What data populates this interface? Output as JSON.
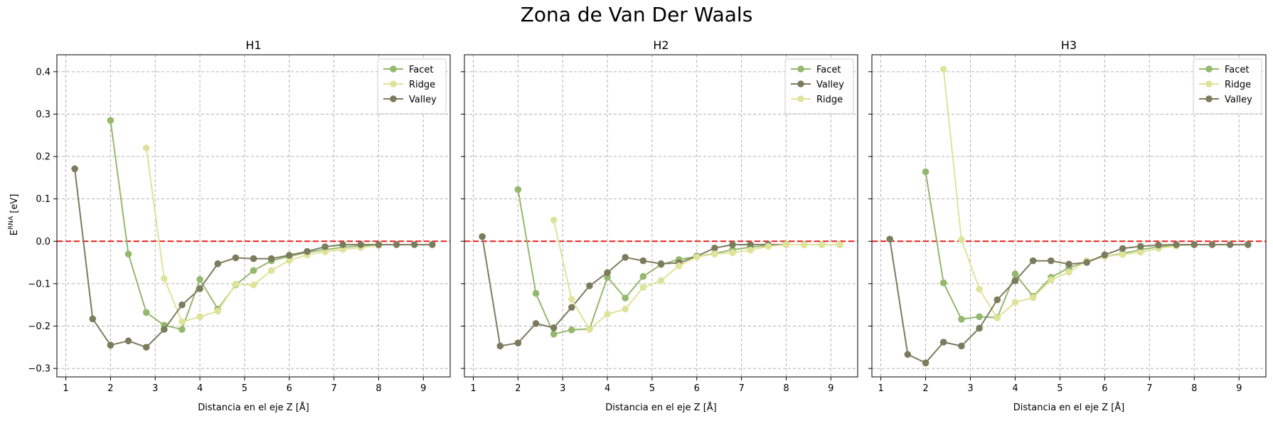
{
  "suptitle": "Zona de Van Der Waals",
  "ylabel": "E^{RNA} [eV]",
  "ylabel_base": "E",
  "ylabel_sup": "RNA",
  "ylabel_unit": " [eV]",
  "colors": {
    "facet": "#94b86d",
    "ridge": "#dfe39a",
    "valley": "#7b7c5e",
    "zero_line": "#e8201a",
    "grid": "#b0b0b0"
  },
  "chart_data": [
    {
      "type": "line",
      "title": "H1",
      "xlabel": "Distancia en el eje Z [Å]",
      "xlim": [
        0.8,
        9.6
      ],
      "ylim": [
        -0.32,
        0.44
      ],
      "xticks": [
        1,
        2,
        3,
        4,
        5,
        6,
        7,
        8,
        9
      ],
      "yticks": [
        -0.3,
        -0.2,
        -0.1,
        0.0,
        0.1,
        0.2,
        0.3,
        0.4
      ],
      "grid": true,
      "legend_position": "top-right",
      "reference_line": 0,
      "series": [
        {
          "name": "Facet",
          "color": "#94b86d",
          "x": [
            2.0,
            2.4,
            2.8,
            3.2,
            3.6,
            4.0,
            4.4,
            4.8,
            5.2,
            5.6,
            6.0,
            6.4,
            6.8,
            7.2,
            7.6,
            8.0
          ],
          "y": [
            0.285,
            -0.03,
            -0.168,
            -0.198,
            -0.208,
            -0.09,
            -0.16,
            -0.103,
            -0.069,
            -0.046,
            -0.036,
            -0.026,
            -0.02,
            -0.014,
            -0.011,
            -0.009
          ]
        },
        {
          "name": "Ridge",
          "color": "#dfe39a",
          "x": [
            2.8,
            3.2,
            3.6,
            4.0,
            4.4,
            4.8,
            5.2,
            5.6,
            6.0,
            6.4,
            6.8,
            7.2,
            7.6,
            8.0
          ],
          "y": [
            0.22,
            -0.088,
            -0.19,
            -0.178,
            -0.165,
            -0.101,
            -0.103,
            -0.069,
            -0.045,
            -0.032,
            -0.025,
            -0.019,
            -0.015,
            -0.01
          ]
        },
        {
          "name": "Valley",
          "color": "#7b7c5e",
          "x": [
            1.2,
            1.6,
            2.0,
            2.4,
            2.8,
            3.2,
            3.6,
            4.0,
            4.4,
            4.8,
            5.2,
            5.6,
            6.0,
            6.4,
            6.8,
            7.2,
            7.6,
            8.0,
            8.4,
            8.8,
            9.2
          ],
          "y": [
            0.171,
            -0.183,
            -0.245,
            -0.235,
            -0.25,
            -0.208,
            -0.15,
            -0.112,
            -0.053,
            -0.039,
            -0.041,
            -0.041,
            -0.033,
            -0.024,
            -0.013,
            -0.008,
            -0.008,
            -0.008,
            -0.008,
            -0.008,
            -0.008
          ]
        }
      ]
    },
    {
      "type": "line",
      "title": "H2",
      "xlabel": "Distancia en el eje Z [Å]",
      "xlim": [
        0.8,
        9.6
      ],
      "ylim": [
        -0.32,
        0.44
      ],
      "xticks": [
        1,
        2,
        3,
        4,
        5,
        6,
        7,
        8,
        9
      ],
      "yticks": [
        -0.3,
        -0.2,
        -0.1,
        0.0,
        0.1,
        0.2,
        0.3,
        0.4
      ],
      "grid": true,
      "legend_position": "top-right",
      "reference_line": 0,
      "series": [
        {
          "name": "Facet",
          "color": "#94b86d",
          "x": [
            2.0,
            2.4,
            2.8,
            3.2,
            3.6,
            4.0,
            4.4,
            4.8,
            5.2,
            5.6,
            6.0,
            6.4,
            6.8,
            7.2,
            7.6,
            8.0
          ],
          "y": [
            0.122,
            -0.123,
            -0.219,
            -0.209,
            -0.207,
            -0.085,
            -0.134,
            -0.083,
            -0.055,
            -0.043,
            -0.036,
            -0.029,
            -0.02,
            -0.014,
            -0.01,
            -0.007
          ]
        },
        {
          "name": "Valley",
          "color": "#7b7c5e",
          "x": [
            1.2,
            1.6,
            2.0,
            2.4,
            2.8,
            3.2,
            3.6,
            4.0,
            4.4,
            4.8,
            5.2,
            5.6,
            6.0,
            6.4,
            6.8,
            7.2,
            7.6,
            8.0,
            8.4,
            8.8,
            9.2
          ],
          "y": [
            0.011,
            -0.247,
            -0.24,
            -0.194,
            -0.204,
            -0.156,
            -0.105,
            -0.074,
            -0.038,
            -0.046,
            -0.053,
            -0.051,
            -0.035,
            -0.016,
            -0.008,
            -0.008,
            -0.008,
            -0.008,
            -0.008,
            -0.008,
            -0.008
          ]
        },
        {
          "name": "Ridge",
          "color": "#dfe39a",
          "x": [
            2.8,
            3.2,
            3.6,
            4.0,
            4.4,
            4.8,
            5.2,
            5.6,
            6.0,
            6.4,
            6.8,
            7.2,
            7.6,
            8.0,
            8.4,
            8.8,
            9.2
          ],
          "y": [
            0.05,
            -0.137,
            -0.208,
            -0.172,
            -0.16,
            -0.109,
            -0.093,
            -0.058,
            -0.037,
            -0.03,
            -0.027,
            -0.021,
            -0.012,
            -0.008,
            -0.008,
            -0.008,
            -0.008
          ]
        }
      ]
    },
    {
      "type": "line",
      "title": "H3",
      "xlabel": "Distancia en el eje Z [Å]",
      "xlim": [
        0.8,
        9.6
      ],
      "ylim": [
        -0.32,
        0.44
      ],
      "xticks": [
        1,
        2,
        3,
        4,
        5,
        6,
        7,
        8,
        9
      ],
      "yticks": [
        -0.3,
        -0.2,
        -0.1,
        0.0,
        0.1,
        0.2,
        0.3,
        0.4
      ],
      "grid": true,
      "legend_position": "top-right",
      "reference_line": 0,
      "series": [
        {
          "name": "Facet",
          "color": "#94b86d",
          "x": [
            2.0,
            2.4,
            2.8,
            3.2,
            3.6,
            4.0,
            4.4,
            4.8,
            5.2,
            5.6,
            6.0,
            6.4,
            6.8,
            7.2,
            7.6,
            8.0
          ],
          "y": [
            0.164,
            -0.098,
            -0.184,
            -0.178,
            -0.18,
            -0.077,
            -0.13,
            -0.085,
            -0.063,
            -0.047,
            -0.036,
            -0.029,
            -0.02,
            -0.013,
            -0.01,
            -0.008
          ]
        },
        {
          "name": "Ridge",
          "color": "#dfe39a",
          "x": [
            2.4,
            2.8,
            3.2,
            3.6,
            4.0,
            4.4,
            4.8,
            5.2,
            5.6,
            6.0,
            6.4,
            6.8,
            7.2,
            7.6,
            8.0
          ],
          "y": [
            0.406,
            0.004,
            -0.113,
            -0.181,
            -0.144,
            -0.133,
            -0.091,
            -0.073,
            -0.046,
            -0.036,
            -0.031,
            -0.026,
            -0.017,
            -0.011,
            -0.008
          ]
        },
        {
          "name": "Valley",
          "color": "#7b7c5e",
          "x": [
            1.2,
            1.6,
            2.0,
            2.4,
            2.8,
            3.2,
            3.6,
            4.0,
            4.4,
            4.8,
            5.2,
            5.6,
            6.0,
            6.4,
            6.8,
            7.2,
            7.6,
            8.0,
            8.4,
            8.8,
            9.2
          ],
          "y": [
            0.005,
            -0.267,
            -0.287,
            -0.238,
            -0.247,
            -0.205,
            -0.138,
            -0.093,
            -0.046,
            -0.046,
            -0.054,
            -0.05,
            -0.032,
            -0.017,
            -0.012,
            -0.009,
            -0.008,
            -0.008,
            -0.008,
            -0.008,
            -0.008
          ]
        }
      ]
    }
  ]
}
